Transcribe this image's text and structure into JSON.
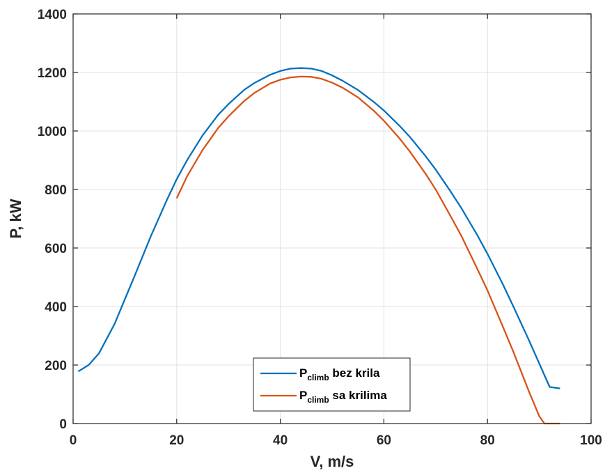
{
  "chart_data": {
    "type": "line",
    "title": "",
    "xlabel": "V, m/s",
    "ylabel": "P, kW",
    "xlim": [
      0,
      100
    ],
    "ylim": [
      0,
      1400
    ],
    "xticks": [
      0,
      20,
      40,
      60,
      80,
      100
    ],
    "yticks": [
      0,
      200,
      400,
      600,
      800,
      1000,
      1200,
      1400
    ],
    "grid": true,
    "legend_position": "bottom-center",
    "series": [
      {
        "name_main": "P",
        "name_sub": "climb",
        "name_rest": " bez krila",
        "color": "#0072BD",
        "x": [
          1,
          3,
          5,
          8,
          10,
          12,
          15,
          18,
          20,
          22,
          25,
          28,
          30,
          33,
          35,
          38,
          40,
          42,
          44,
          46,
          48,
          50,
          52,
          55,
          58,
          60,
          63,
          65,
          68,
          70,
          73,
          75,
          78,
          80,
          83,
          85,
          88,
          90,
          92,
          94
        ],
        "y": [
          178,
          200,
          240,
          340,
          425,
          510,
          640,
          760,
          835,
          900,
          985,
          1055,
          1092,
          1140,
          1164,
          1192,
          1205,
          1213,
          1215,
          1213,
          1205,
          1190,
          1172,
          1140,
          1100,
          1070,
          1018,
          980,
          915,
          868,
          790,
          735,
          645,
          580,
          475,
          400,
          285,
          205,
          125,
          120
        ]
      },
      {
        "name_main": "P",
        "name_sub": "climb",
        "name_rest": " sa krilima",
        "color": "#D95319",
        "x": [
          20,
          22,
          25,
          28,
          30,
          33,
          35,
          38,
          40,
          42,
          44,
          46,
          48,
          50,
          52,
          55,
          58,
          60,
          63,
          65,
          68,
          70,
          73,
          75,
          78,
          80,
          83,
          85,
          88,
          90,
          91,
          94
        ],
        "y": [
          770,
          845,
          935,
          1010,
          1050,
          1102,
          1130,
          1162,
          1175,
          1183,
          1186,
          1185,
          1178,
          1165,
          1148,
          1115,
          1070,
          1035,
          975,
          930,
          855,
          800,
          705,
          640,
          530,
          455,
          330,
          245,
          110,
          25,
          0,
          0
        ]
      }
    ]
  }
}
